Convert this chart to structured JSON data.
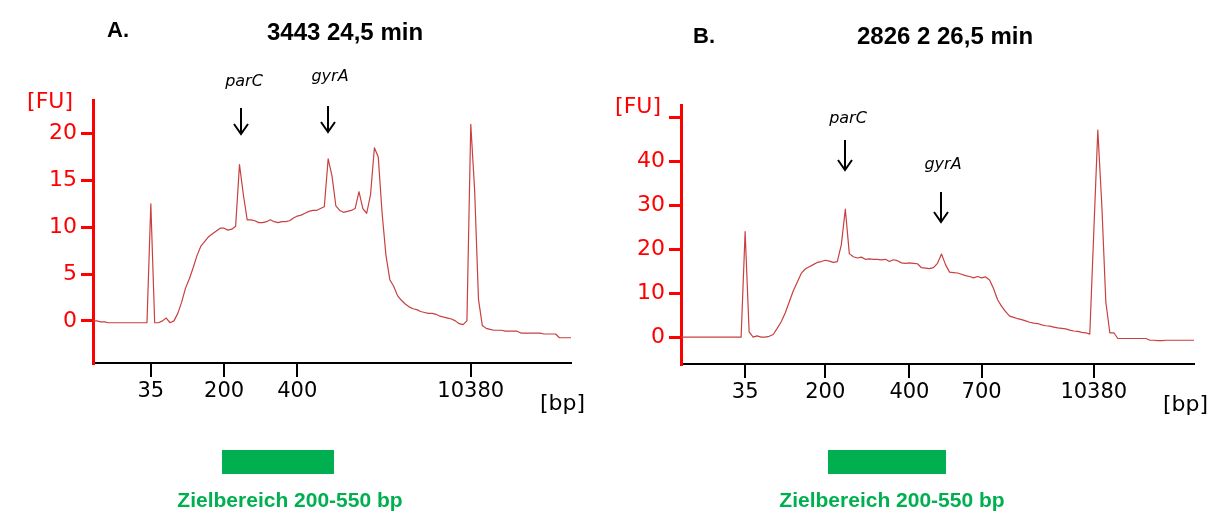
{
  "chart_data": [
    {
      "type": "line",
      "title": "3443 24,5 min",
      "ylabel": "[FU]",
      "xlabel": "[bp]",
      "color": "#c84040",
      "grid": false,
      "legend": false,
      "marker": "none",
      "ylim": [
        -4.5,
        23.6
      ],
      "yticks": [
        0,
        5,
        10,
        15,
        20
      ],
      "annotations": [
        "A.",
        "parC",
        "gyrA",
        "Zielbereich 200-550 bp"
      ],
      "categories": [
        null,
        null,
        null,
        null,
        null,
        null,
        null,
        null,
        null,
        null,
        null,
        null,
        null,
        null,
        null,
        "35",
        null,
        null,
        null,
        null,
        null,
        null,
        null,
        null,
        null,
        null,
        null,
        null,
        null,
        null,
        null,
        null,
        null,
        null,
        "200",
        null,
        null,
        null,
        null,
        null,
        null,
        null,
        null,
        null,
        null,
        null,
        null,
        null,
        null,
        null,
        null,
        null,
        null,
        "400",
        null,
        null,
        null,
        null,
        null,
        null,
        null,
        null,
        null,
        null,
        null,
        null,
        null,
        null,
        null,
        null,
        null,
        null,
        null,
        null,
        null,
        null,
        null,
        null,
        null,
        null,
        null,
        null,
        null,
        null,
        null,
        null,
        null,
        null,
        null,
        null,
        null,
        null,
        null,
        null,
        null,
        null,
        null,
        null,
        "10380",
        null,
        null,
        null,
        null,
        null,
        null,
        null,
        null,
        null,
        null,
        null,
        null,
        null,
        null,
        null,
        null,
        null,
        null,
        null,
        null,
        null,
        null,
        null,
        null,
        null,
        null
      ],
      "values": [
        0,
        0,
        -0.1,
        -0.1,
        -0.2,
        -0.2,
        -0.2,
        -0.2,
        -0.2,
        -0.2,
        -0.2,
        -0.2,
        -0.2,
        -0.2,
        -0.2,
        12.5,
        -0.2,
        -0.2,
        0,
        0.3,
        -0.2,
        0,
        0.8,
        2,
        3.5,
        4.5,
        5.7,
        7,
        8,
        8.5,
        9,
        9.3,
        9.6,
        9.9,
        9.9,
        9.7,
        9.8,
        10.1,
        16.7,
        13.5,
        10.8,
        10.8,
        10.7,
        10.5,
        10.5,
        10.6,
        10.8,
        10.6,
        10.5,
        10.6,
        10.6,
        10.7,
        11,
        11.2,
        11.3,
        11.5,
        11.7,
        11.8,
        11.8,
        12,
        12.2,
        17.3,
        15.5,
        12.3,
        11.8,
        11.6,
        11.7,
        11.8,
        12,
        13.8,
        12,
        11.5,
        13.5,
        18.5,
        17.5,
        11.5,
        7,
        4.4,
        3.7,
        2.7,
        2.2,
        1.8,
        1.5,
        1.3,
        1.2,
        1,
        0.9,
        0.8,
        0.8,
        0.7,
        0.5,
        0.4,
        0.3,
        0.2,
        0,
        -0.3,
        -0.4,
        0,
        21,
        14,
        2.3,
        -0.5,
        -0.8,
        -0.9,
        -1,
        -1,
        -1,
        -1.1,
        -1.1,
        -1.1,
        -1.1,
        -1.3,
        -1.3,
        -1.3,
        -1.3,
        -1.3,
        -1.3,
        -1.4,
        -1.4,
        -1.4,
        -1.4,
        -1.8,
        -1.8,
        -1.8,
        -1.8
      ]
    },
    {
      "type": "line",
      "title": "2826 2 26,5 min",
      "ylabel": "[FU]",
      "xlabel": "[bp]",
      "color": "#c84040",
      "grid": false,
      "legend": false,
      "marker": "none",
      "ylim": [
        -6.1,
        52.8
      ],
      "yticks": [
        0,
        10,
        20,
        30,
        40,
        {
          "value": 50,
          "label": null
        }
      ],
      "annotations": [
        "B.",
        "parC",
        "gyrA",
        "Zielbereich 200-550 bp"
      ],
      "categories": [
        null,
        null,
        null,
        null,
        null,
        null,
        null,
        null,
        null,
        null,
        null,
        null,
        null,
        null,
        null,
        null,
        "35",
        null,
        null,
        null,
        null,
        null,
        null,
        null,
        null,
        null,
        null,
        null,
        null,
        null,
        null,
        null,
        null,
        null,
        null,
        null,
        "200",
        null,
        null,
        null,
        null,
        null,
        null,
        null,
        null,
        null,
        null,
        null,
        null,
        null,
        null,
        null,
        null,
        null,
        null,
        null,
        null,
        "400",
        null,
        null,
        null,
        null,
        null,
        null,
        null,
        null,
        null,
        null,
        null,
        null,
        null,
        null,
        null,
        null,
        null,
        "700",
        null,
        null,
        null,
        null,
        null,
        null,
        null,
        null,
        null,
        null,
        null,
        null,
        null,
        null,
        null,
        null,
        null,
        null,
        null,
        null,
        null,
        null,
        null,
        null,
        null,
        null,
        null,
        "10380",
        null,
        null,
        null,
        null,
        null,
        null,
        null,
        null,
        null,
        null,
        null,
        null,
        null,
        null,
        null,
        null,
        null,
        null,
        null,
        null,
        null,
        null,
        null,
        null,
        null
      ],
      "values": [
        0,
        0,
        0,
        0,
        0,
        0,
        0,
        0,
        0,
        0,
        0,
        0,
        0,
        0,
        0,
        0,
        24,
        1.2,
        0,
        0.3,
        0,
        0,
        0.2,
        0.6,
        2,
        3.5,
        5.5,
        8,
        10.5,
        12.5,
        14.5,
        15.5,
        16,
        16.5,
        17,
        17.2,
        17.5,
        17.3,
        17,
        17.2,
        21,
        29.1,
        19,
        18.3,
        18,
        18.2,
        17.7,
        17.8,
        17.7,
        17.7,
        17.6,
        17.7,
        17.2,
        17.6,
        17.4,
        16.9,
        16.8,
        16.9,
        16.8,
        16.7,
        15.8,
        15.7,
        15.6,
        15.8,
        16.8,
        18.9,
        16.5,
        14.8,
        14.7,
        14.6,
        14.3,
        14,
        13.8,
        13.5,
        13.8,
        13.5,
        13.7,
        13,
        11,
        8.5,
        7,
        5.8,
        4.8,
        4.5,
        4.2,
        4,
        3.7,
        3.4,
        3.2,
        3.1,
        2.8,
        2.6,
        2.5,
        2.3,
        2.1,
        2,
        1.9,
        1.6,
        1.4,
        1.3,
        1.1,
        1,
        0.7,
        24,
        47.1,
        30,
        8,
        1,
        1,
        -0.3,
        -0.3,
        -0.3,
        -0.3,
        -0.3,
        -0.3,
        -0.3,
        -0.3,
        -0.7,
        -0.7,
        -0.8,
        -0.8,
        -0.7,
        -0.7,
        -0.7,
        -0.7,
        -0.7,
        -0.7,
        -0.7,
        -0.7
      ]
    }
  ]
}
